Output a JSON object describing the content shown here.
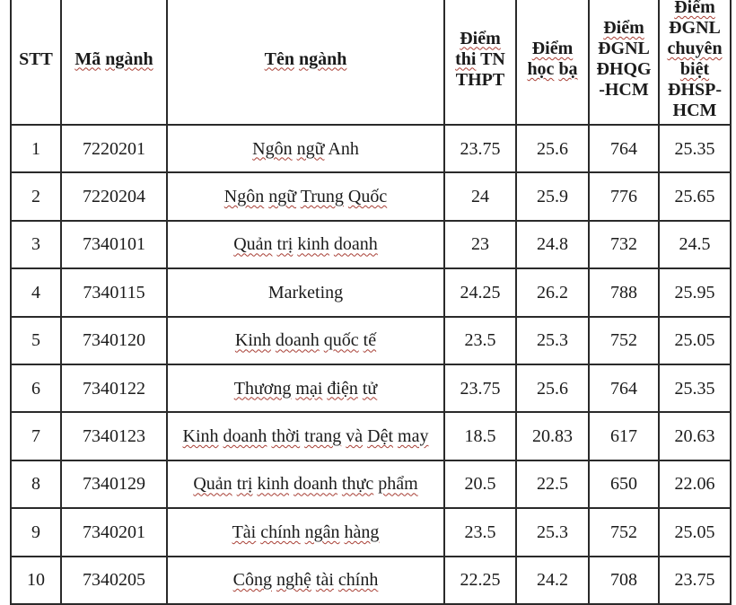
{
  "page": {
    "background": "#ffffff",
    "text_color": "#1b1b1b",
    "border_color": "#2a2a2a",
    "spellcheck_underline_color": "#a83f35"
  },
  "table": {
    "name": "university-admission-scores-table",
    "columns": [
      {
        "id": "stt",
        "label": "STT",
        "lines": [
          "STT"
        ],
        "wavy_words": []
      },
      {
        "id": "ma-nganh",
        "label": "Mã ngành",
        "lines": [
          "Mã ngành"
        ],
        "wavy_words": [
          "Mã",
          "ngành"
        ]
      },
      {
        "id": "ten-nganh",
        "label": "Tên ngành",
        "lines": [
          "Tên ngành"
        ],
        "wavy_words": [
          "Tên",
          "ngành"
        ]
      },
      {
        "id": "diem-thi-tn-thpt",
        "label": "Điểm thi TN THPT",
        "lines": [
          "Điểm",
          "thi TN",
          "THPT"
        ],
        "wavy_words": [
          "Điểm",
          "thi"
        ]
      },
      {
        "id": "diem-hoc-ba",
        "label": "Điểm học bạ",
        "lines": [
          "Điểm",
          "học bạ"
        ],
        "wavy_words": [
          "Điểm",
          "học",
          "bạ"
        ]
      },
      {
        "id": "diem-dgnl-dhqg-hcm",
        "label": "Điểm ĐGNL ĐHQG -HCM",
        "lines": [
          "Điểm",
          "ĐGNL",
          "ĐHQG",
          "-HCM"
        ],
        "wavy_words": [
          "Điểm"
        ]
      },
      {
        "id": "diem-dgnl-chuyen-biet-dhsp-hcm",
        "label": "Điểm ĐGNL chuyên biệt ĐHSP- HCM",
        "lines": [
          "Điểm",
          "ĐGNL",
          "chuyên",
          "biệt",
          "ĐHSP-",
          "HCM"
        ],
        "wavy_words": [
          "Điểm",
          "chuyên",
          "biệt"
        ]
      }
    ],
    "rows": [
      {
        "stt": "1",
        "ma_nganh": "7220201",
        "ten_nganh": "Ngôn ngữ Anh",
        "ten_wavy_words": [
          "Ngôn",
          "ngữ"
        ],
        "diem_thi_tn_thpt": "23.75",
        "diem_hoc_ba": "25.6",
        "diem_dgnl_dhqg_hcm": "764",
        "diem_dgnl_chuyen_biet_dhsp_hcm": "25.35"
      },
      {
        "stt": "2",
        "ma_nganh": "7220204",
        "ten_nganh": "Ngôn ngữ Trung Quốc",
        "ten_wavy_words": [
          "Ngôn",
          "ngữ",
          "Trung",
          "Quốc"
        ],
        "diem_thi_tn_thpt": "24",
        "diem_hoc_ba": "25.9",
        "diem_dgnl_dhqg_hcm": "776",
        "diem_dgnl_chuyen_biet_dhsp_hcm": "25.65"
      },
      {
        "stt": "3",
        "ma_nganh": "7340101",
        "ten_nganh": "Quản trị kinh doanh",
        "ten_wavy_words": [
          "Quản",
          "trị",
          "kinh",
          "doanh"
        ],
        "diem_thi_tn_thpt": "23",
        "diem_hoc_ba": "24.8",
        "diem_dgnl_dhqg_hcm": "732",
        "diem_dgnl_chuyen_biet_dhsp_hcm": "24.5"
      },
      {
        "stt": "4",
        "ma_nganh": "7340115",
        "ten_nganh": "Marketing",
        "ten_wavy_words": [],
        "diem_thi_tn_thpt": "24.25",
        "diem_hoc_ba": "26.2",
        "diem_dgnl_dhqg_hcm": "788",
        "diem_dgnl_chuyen_biet_dhsp_hcm": "25.95"
      },
      {
        "stt": "5",
        "ma_nganh": "7340120",
        "ten_nganh": "Kinh doanh quốc tế",
        "ten_wavy_words": [
          "Kinh",
          "doanh",
          "quốc",
          "tế"
        ],
        "diem_thi_tn_thpt": "23.5",
        "diem_hoc_ba": "25.3",
        "diem_dgnl_dhqg_hcm": "752",
        "diem_dgnl_chuyen_biet_dhsp_hcm": "25.05"
      },
      {
        "stt": "6",
        "ma_nganh": "7340122",
        "ten_nganh": "Thương mại điện tử",
        "ten_wavy_words": [
          "Thương",
          "mại",
          "điện",
          "tử"
        ],
        "diem_thi_tn_thpt": "23.75",
        "diem_hoc_ba": "25.6",
        "diem_dgnl_dhqg_hcm": "764",
        "diem_dgnl_chuyen_biet_dhsp_hcm": "25.35"
      },
      {
        "stt": "7",
        "ma_nganh": "7340123",
        "ten_nganh": "Kinh doanh thời trang và Dệt may",
        "ten_wavy_words": [
          "Kinh",
          "doanh",
          "thời",
          "trang",
          "và",
          "Dệt",
          "may"
        ],
        "diem_thi_tn_thpt": "18.5",
        "diem_hoc_ba": "20.83",
        "diem_dgnl_dhqg_hcm": "617",
        "diem_dgnl_chuyen_biet_dhsp_hcm": "20.63"
      },
      {
        "stt": "8",
        "ma_nganh": "7340129",
        "ten_nganh": "Quản trị kinh doanh thực phẩm",
        "ten_wavy_words": [
          "Quản",
          "trị",
          "kinh",
          "doanh",
          "thực",
          "phẩm"
        ],
        "diem_thi_tn_thpt": "20.5",
        "diem_hoc_ba": "22.5",
        "diem_dgnl_dhqg_hcm": "650",
        "diem_dgnl_chuyen_biet_dhsp_hcm": "22.06"
      },
      {
        "stt": "9",
        "ma_nganh": "7340201",
        "ten_nganh": "Tài chính ngân hàng",
        "ten_wavy_words": [
          "Tài",
          "chính",
          "ngân",
          "hàng"
        ],
        "diem_thi_tn_thpt": "23.5",
        "diem_hoc_ba": "25.3",
        "diem_dgnl_dhqg_hcm": "752",
        "diem_dgnl_chuyen_biet_dhsp_hcm": "25.05"
      },
      {
        "stt": "10",
        "ma_nganh": "7340205",
        "ten_nganh": "Công nghệ tài chính",
        "ten_wavy_words": [
          "Công",
          "nghệ",
          "tài",
          "chính"
        ],
        "diem_thi_tn_thpt": "22.25",
        "diem_hoc_ba": "24.2",
        "diem_dgnl_dhqg_hcm": "708",
        "diem_dgnl_chuyen_biet_dhsp_hcm": "23.75"
      }
    ]
  }
}
